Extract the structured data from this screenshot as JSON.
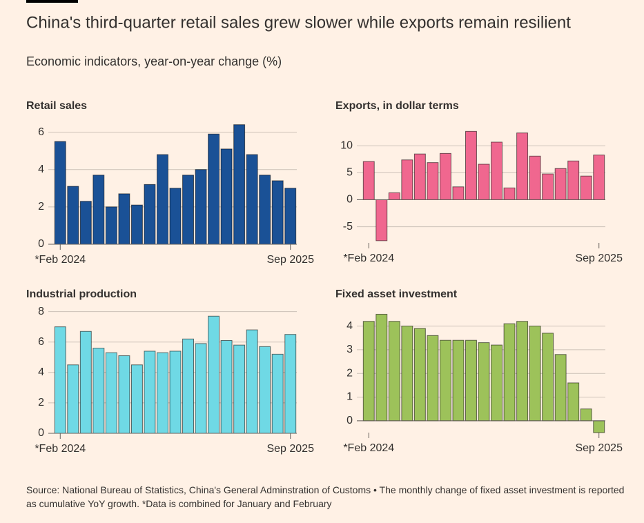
{
  "header": {
    "title": "China's third-quarter retail sales grew slower while exports remain resilient",
    "subtitle": "Economic indicators, year-on-year change (%)"
  },
  "chart_data": [
    {
      "type": "bar",
      "title": "Retail sales",
      "categories": [
        "*Feb 2024",
        null,
        null,
        null,
        null,
        null,
        null,
        null,
        null,
        null,
        null,
        null,
        null,
        null,
        null,
        null,
        null,
        null,
        "Sep 2025"
      ],
      "values": [
        5.5,
        3.1,
        2.3,
        3.7,
        2.0,
        2.7,
        2.1,
        3.2,
        4.8,
        3.0,
        3.7,
        4.0,
        5.9,
        5.1,
        6.4,
        4.8,
        3.7,
        3.4,
        3.0
      ],
      "color": "#1a5196",
      "ylim": [
        0,
        6.5
      ],
      "yticks": [
        0,
        2,
        4,
        6
      ],
      "grid": true
    },
    {
      "type": "bar",
      "title": "Exports, in dollar terms",
      "categories": [
        "*Feb 2024",
        null,
        null,
        null,
        null,
        null,
        null,
        null,
        null,
        null,
        null,
        null,
        null,
        null,
        null,
        null,
        null,
        null,
        "Sep 2025"
      ],
      "values": [
        7.1,
        -7.6,
        1.3,
        7.4,
        8.5,
        6.9,
        8.6,
        2.4,
        12.7,
        6.6,
        10.7,
        2.2,
        12.4,
        8.1,
        4.8,
        5.8,
        7.2,
        4.4,
        8.3
      ],
      "color": "#f0678f",
      "ylim": [
        -8,
        13
      ],
      "yticks": [
        -5,
        0,
        5,
        10
      ],
      "grid": true
    },
    {
      "type": "bar",
      "title": "Industrial production",
      "categories": [
        "*Feb 2024",
        null,
        null,
        null,
        null,
        null,
        null,
        null,
        null,
        null,
        null,
        null,
        null,
        null,
        null,
        null,
        null,
        null,
        "Sep 2025"
      ],
      "values": [
        7.0,
        4.5,
        6.7,
        5.6,
        5.3,
        5.1,
        4.5,
        5.4,
        5.3,
        5.4,
        6.2,
        5.9,
        7.7,
        6.1,
        5.8,
        6.8,
        5.7,
        5.2,
        6.5
      ],
      "color": "#6fd9e5",
      "ylim": [
        0,
        8.3
      ],
      "yticks": [
        0,
        2,
        4,
        6,
        8
      ],
      "grid": true
    },
    {
      "type": "bar",
      "title": "Fixed asset investment",
      "categories": [
        "*Feb 2024",
        null,
        null,
        null,
        null,
        null,
        null,
        null,
        null,
        null,
        null,
        null,
        null,
        null,
        null,
        null,
        null,
        null,
        "Sep 2025"
      ],
      "values": [
        4.2,
        4.5,
        4.2,
        4.0,
        3.9,
        3.6,
        3.4,
        3.4,
        3.4,
        3.3,
        3.2,
        4.1,
        4.2,
        4.0,
        3.7,
        2.8,
        1.6,
        0.5,
        -0.5
      ],
      "color": "#9dc25a",
      "ylim": [
        -0.5,
        4.6
      ],
      "yticks": [
        0,
        1,
        2,
        3,
        4
      ],
      "grid": true
    }
  ],
  "footer": {
    "source": "Source: National Bureau of Statistics, China's General Adminstration of Customs • The monthly change of fixed asset investment is reported as cumulative YoY growth. *Data is combined for January and February"
  }
}
